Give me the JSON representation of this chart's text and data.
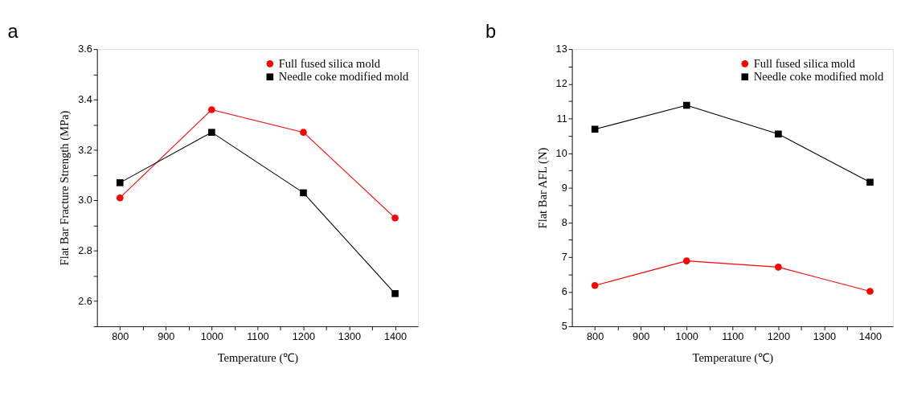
{
  "chart_data": [
    {
      "type": "line",
      "title": "a",
      "xlabel": "Temperature (℃)",
      "ylabel": "Flat Bar Fracture Strength (MPa)",
      "x": [
        800,
        1000,
        1200,
        1400
      ],
      "series": [
        {
          "name": "Full fused silica mold",
          "color": "#ff0000",
          "marker": "circle",
          "values": [
            3.01,
            3.36,
            3.27,
            2.93
          ]
        },
        {
          "name": "Needle coke modified mold",
          "color": "#000000",
          "marker": "square",
          "values": [
            3.07,
            3.27,
            3.03,
            2.63
          ]
        }
      ],
      "xlim": [
        750,
        1450
      ],
      "ylim": [
        2.5,
        3.6
      ],
      "xticks": [
        800,
        {
          "value": 850,
          "label": null
        },
        900,
        {
          "value": 950,
          "label": null
        },
        1000,
        {
          "value": 1050,
          "label": null
        },
        1100,
        {
          "value": 1150,
          "label": null
        },
        1200,
        {
          "value": 1250,
          "label": null
        },
        1300,
        {
          "value": 1350,
          "label": null
        },
        1400
      ],
      "yticks": [
        {
          "value": 2.5,
          "label": null
        },
        2.6,
        {
          "value": 2.7,
          "label": null
        },
        2.8,
        {
          "value": 2.9,
          "label": null
        },
        {
          "value": 3,
          "label": "3.0"
        },
        {
          "value": 3.1,
          "label": null
        },
        3.2,
        {
          "value": 3.3,
          "label": null
        },
        3.4,
        {
          "value": 3.5,
          "label": null
        },
        3.6
      ],
      "grid": false,
      "legend": "top right",
      "line_style": "solid"
    },
    {
      "type": "line",
      "title": "b",
      "xlabel": "Temperature (℃)",
      "ylabel": "Flat Bar AFL (N)",
      "x": [
        800,
        1000,
        1200,
        1400
      ],
      "series": [
        {
          "name": "Full fused silica mold",
          "color": "#ff0000",
          "marker": "circle",
          "values": [
            6.18,
            6.89,
            6.71,
            6.01
          ]
        },
        {
          "name": "Needle coke modified mold",
          "color": "#000000",
          "marker": "square",
          "values": [
            10.69,
            11.38,
            10.55,
            9.16
          ]
        }
      ],
      "xlim": [
        750,
        1450
      ],
      "ylim": [
        5,
        13
      ],
      "xticks": [
        800,
        {
          "value": 850,
          "label": null
        },
        900,
        {
          "value": 950,
          "label": null
        },
        1000,
        {
          "value": 1050,
          "label": null
        },
        1100,
        {
          "value": 1150,
          "label": null
        },
        1200,
        {
          "value": 1250,
          "label": null
        },
        1300,
        {
          "value": 1350,
          "label": null
        },
        1400
      ],
      "yticks": [
        5,
        {
          "value": 5.5,
          "label": null
        },
        6,
        {
          "value": 6.5,
          "label": null
        },
        7,
        {
          "value": 7.5,
          "label": null
        },
        8,
        {
          "value": 8.5,
          "label": null
        },
        9,
        {
          "value": 9.5,
          "label": null
        },
        10,
        {
          "value": 10.5,
          "label": null
        },
        11,
        {
          "value": 11.5,
          "label": null
        },
        12,
        {
          "value": 12.5,
          "label": null
        },
        13
      ],
      "grid": false,
      "legend": "top right",
      "line_style": "solid"
    }
  ]
}
